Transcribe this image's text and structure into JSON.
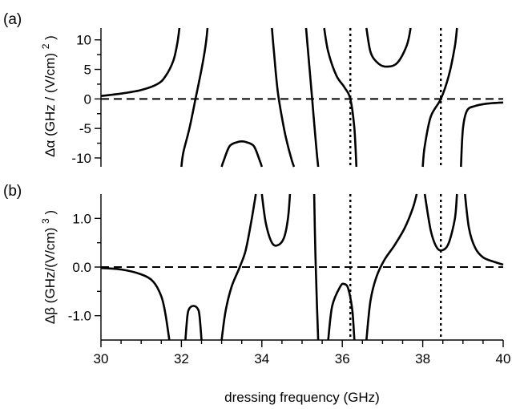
{
  "chart_data": [
    {
      "panel_label": "(a)",
      "type": "line",
      "ylabel": "Δα (GHz / (V/cm)²)",
      "ylabel_parts": {
        "symbol": "Δα",
        "unit": "(GHz / (V/cm)",
        "exponent": "2",
        "close": ")"
      },
      "xlim": [
        30,
        40
      ],
      "ylim": [
        -11.5,
        12
      ],
      "yticks": [
        10,
        5,
        0,
        -5,
        -10
      ],
      "ytick_labels": [
        "10",
        "5",
        "0",
        "-5",
        "-10"
      ],
      "grid": false,
      "series": [
        {
          "x": [
            30,
            30.5,
            31,
            31.4,
            31.6,
            31.8,
            31.9,
            31.95
          ],
          "y": [
            0.5,
            0.9,
            1.5,
            2.5,
            3.8,
            6.5,
            9.5,
            12
          ]
        },
        {
          "x": [
            32.0,
            32.05,
            32.2,
            32.35,
            32.5,
            32.6,
            32.65
          ],
          "y": [
            -11.5,
            -9,
            -5,
            0,
            5,
            9,
            12
          ]
        },
        {
          "x": [
            33.0,
            33.05,
            33.2,
            33.4,
            33.5,
            33.6,
            33.8,
            33.95,
            34.0
          ],
          "y": [
            -11.5,
            -10.5,
            -8,
            -7.3,
            -7.2,
            -7.3,
            -8,
            -10.5,
            -11.5
          ]
        },
        {
          "x": [
            34.25,
            34.3,
            34.4,
            34.55,
            34.65,
            34.75,
            34.8
          ],
          "y": [
            12,
            8,
            1,
            -5,
            -8,
            -10.5,
            -11.5
          ]
        },
        {
          "x": [
            35.1,
            35.15,
            35.25,
            35.35,
            35.4
          ],
          "y": [
            12,
            8,
            0,
            -8,
            -11.5
          ]
        },
        {
          "x": [
            35.55,
            35.65,
            35.85,
            36.05,
            36.2,
            36.3,
            36.35
          ],
          "y": [
            12,
            8,
            4,
            2,
            0,
            -5,
            -11.5
          ]
        },
        {
          "x": [
            36.6,
            36.7,
            36.85,
            37.05,
            37.35,
            37.6,
            37.7
          ],
          "y": [
            12,
            8,
            6.3,
            5.5,
            6,
            9,
            12
          ]
        },
        {
          "x": [
            38.0,
            38.05,
            38.2,
            38.45,
            38.65,
            38.8,
            38.85
          ],
          "y": [
            -11.5,
            -8,
            -3,
            0,
            4,
            9,
            12
          ]
        },
        {
          "x": [
            38.95,
            39.0,
            39.1,
            39.3,
            39.6,
            40
          ],
          "y": [
            -11.5,
            -5,
            -2,
            -1.2,
            -0.8,
            -0.6
          ]
        }
      ],
      "zero_line": 0,
      "vlines": [
        36.2,
        38.45
      ]
    },
    {
      "panel_label": "(b)",
      "type": "line",
      "ylabel": "Δβ (GHz/(V/cm)³)",
      "ylabel_parts": {
        "symbol": "Δβ",
        "unit": "(GHz/(V/cm)",
        "exponent": "3",
        "close": ")"
      },
      "xlabel": "dressing frequency (GHz)",
      "xlim": [
        30,
        40
      ],
      "ylim": [
        -1.5,
        1.5
      ],
      "xticks": [
        30,
        32,
        34,
        36,
        38,
        40
      ],
      "xtick_labels": [
        "30",
        "32",
        "34",
        "36",
        "38",
        "40"
      ],
      "yticks": [
        1.0,
        0.0,
        -1.0
      ],
      "ytick_labels": [
        "1.0",
        "0.0",
        "-1.0"
      ],
      "grid": false,
      "series": [
        {
          "x": [
            30,
            30.5,
            31,
            31.3,
            31.5,
            31.6,
            31.7
          ],
          "y": [
            -0.02,
            -0.05,
            -0.15,
            -0.3,
            -0.6,
            -0.95,
            -1.5
          ]
        },
        {
          "x": [
            32.1,
            32.15,
            32.2,
            32.3,
            32.4,
            32.45,
            32.5
          ],
          "y": [
            -1.5,
            -1.0,
            -0.85,
            -0.8,
            -0.85,
            -1.0,
            -1.5
          ]
        },
        {
          "x": [
            33.0,
            33.1,
            33.25,
            33.45,
            33.6,
            33.75,
            33.85
          ],
          "y": [
            -1.5,
            -0.9,
            -0.4,
            0.0,
            0.35,
            1.0,
            1.5
          ]
        },
        {
          "x": [
            34.0,
            34.1,
            34.25,
            34.4,
            34.55,
            34.65,
            34.7
          ],
          "y": [
            1.5,
            0.9,
            0.5,
            0.45,
            0.6,
            1.0,
            1.5
          ]
        },
        {
          "x": [
            35.3,
            35.33,
            35.37,
            35.4
          ],
          "y": [
            1.5,
            0.3,
            -0.8,
            -1.5
          ]
        },
        {
          "x": [
            35.65,
            35.75,
            35.95,
            36.05,
            36.15,
            36.25,
            36.3
          ],
          "y": [
            -1.5,
            -0.8,
            -0.4,
            -0.35,
            -0.45,
            -0.9,
            -1.5
          ]
        },
        {
          "x": [
            36.6,
            36.7,
            36.85,
            37.05,
            37.3,
            37.55,
            37.75,
            37.85
          ],
          "y": [
            -1.5,
            -0.7,
            -0.2,
            0.15,
            0.45,
            0.8,
            1.2,
            1.5
          ]
        },
        {
          "x": [
            38.05,
            38.2,
            38.35,
            38.5,
            38.65,
            38.8,
            38.85
          ],
          "y": [
            1.5,
            0.75,
            0.4,
            0.35,
            0.5,
            1.0,
            1.5
          ]
        },
        {
          "x": [
            39.05,
            39.15,
            39.3,
            39.5,
            39.8,
            40
          ],
          "y": [
            1.5,
            0.8,
            0.4,
            0.2,
            0.1,
            0.05
          ]
        }
      ],
      "zero_line": 0,
      "vlines": [
        36.2,
        38.45
      ]
    }
  ]
}
